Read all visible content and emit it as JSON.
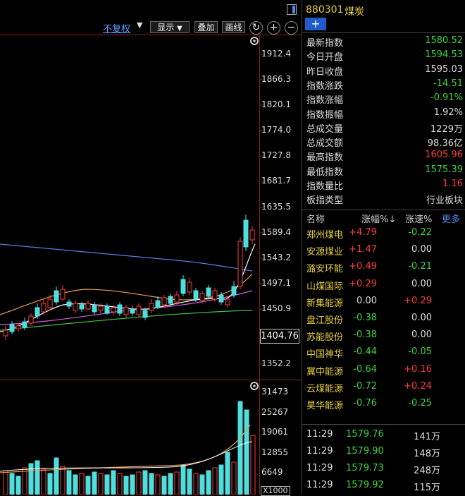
{
  "toolbar": {
    "adjust_label": "不复权",
    "display_label": "显示",
    "overlay_label": "叠加",
    "draw_label": "画线"
  },
  "price_axis": [
    "1912.4",
    "1866.3",
    "1820.1",
    "1774.0",
    "1727.8",
    "1681.7",
    "1635.5",
    "1589.4",
    "1543.2",
    "1497.1",
    "1450.9",
    "1404.76",
    "1352.2"
  ],
  "volume_axis": [
    "31473",
    "25267",
    "19061",
    "12855",
    "6649"
  ],
  "volume_unit": "X1000",
  "header": {
    "code": "880301",
    "name": "煤炭",
    "add_icon": "+"
  },
  "stats": [
    {
      "label": "最新指数",
      "value": "1580.52",
      "color": "grn"
    },
    {
      "label": "今日开盘",
      "value": "1594.53",
      "color": "grn"
    },
    {
      "label": "昨日收盘",
      "value": "1595.03",
      "color": "wht"
    },
    {
      "label": "指数涨跌",
      "value": "-14.51",
      "color": "grn"
    },
    {
      "label": "指数涨幅",
      "value": "-0.91%",
      "color": "grn"
    },
    {
      "label": "指数振幅",
      "value": "1.92%",
      "color": "wht"
    },
    {
      "label": "总成交量",
      "value": "1229万",
      "color": "wht"
    },
    {
      "label": "总成交额",
      "value": "98.36亿",
      "color": "wht"
    },
    {
      "label": "最高指数",
      "value": "1605.96",
      "color": "red"
    },
    {
      "label": "最低指数",
      "value": "1575.39",
      "color": "grn"
    },
    {
      "label": "指数量比",
      "value": "1.16",
      "color": "red"
    },
    {
      "label": "板指类型",
      "value": "行业板块",
      "color": "wht"
    }
  ],
  "sector_header": {
    "name": "名称",
    "change": "涨幅%↓",
    "speed": "涨速%",
    "more": "更多"
  },
  "sector_list": [
    {
      "name": "郑州煤电",
      "change": "+4.79",
      "cc": "red",
      "speed": "-0.22",
      "sc": "grn"
    },
    {
      "name": "安源煤业",
      "change": "+1.47",
      "cc": "red",
      "speed": "0.00",
      "sc": "wht"
    },
    {
      "name": "潞安环能",
      "change": "+0.49",
      "cc": "red",
      "speed": "-0.21",
      "sc": "grn"
    },
    {
      "name": "山煤国际",
      "change": "+0.29",
      "cc": "red",
      "speed": "0.00",
      "sc": "wht"
    },
    {
      "name": "新集能源",
      "change": "0.00",
      "cc": "wht",
      "speed": "+0.29",
      "sc": "red"
    },
    {
      "name": "盘江股份",
      "change": "-0.38",
      "cc": "grn",
      "speed": "0.00",
      "sc": "wht"
    },
    {
      "name": "苏能股份",
      "change": "-0.38",
      "cc": "grn",
      "speed": "0.00",
      "sc": "wht"
    },
    {
      "name": "中国神华",
      "change": "-0.44",
      "cc": "grn",
      "speed": "-0.05",
      "sc": "grn"
    },
    {
      "name": "冀中能源",
      "change": "-0.64",
      "cc": "grn",
      "speed": "+0.16",
      "sc": "red"
    },
    {
      "name": "云煤能源",
      "change": "-0.72",
      "cc": "grn",
      "speed": "+0.24",
      "sc": "red"
    },
    {
      "name": "昊华能源",
      "change": "-0.76",
      "cc": "grn",
      "speed": "-0.25",
      "sc": "grn"
    }
  ],
  "ticks": [
    {
      "time": "11:29",
      "price": "1579.76",
      "vol": "141万"
    },
    {
      "time": "11:29",
      "price": "1579.90",
      "vol": "148万"
    },
    {
      "time": "11:29",
      "price": "1579.73",
      "vol": "248万"
    },
    {
      "time": "11:29",
      "price": "1579.92",
      "vol": "115万"
    }
  ],
  "colors": {
    "up": "#ff3b3b",
    "down": "#3fd43f",
    "candle_up": "#4fdede",
    "candle_down": "#4fdede",
    "ma_blue": "#5a7ce8",
    "ma_orange": "#e8a050",
    "ma_white": "#ffffff",
    "ma_purple": "#d060e0",
    "ma_green": "#40c040"
  }
}
